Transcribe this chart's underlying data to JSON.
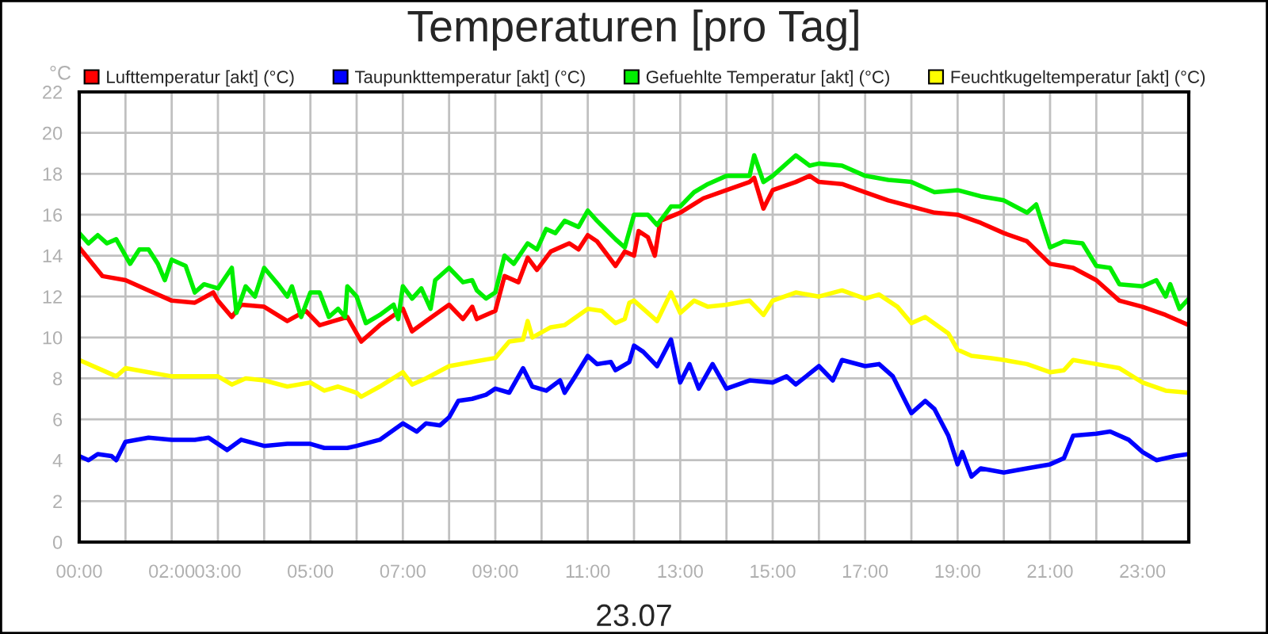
{
  "chart_data": {
    "type": "line",
    "title": "Temperaturen [pro Tag]",
    "xlabel": "23.07",
    "ylabel": "°C",
    "xlim": [
      0,
      24
    ],
    "ylim": [
      0,
      22
    ],
    "xticks": [
      {
        "value": 0,
        "label": "00:00"
      },
      {
        "value": 1,
        "label": null
      },
      {
        "value": 2,
        "label": "02:00"
      },
      {
        "value": 3,
        "label": "03:00"
      },
      {
        "value": 4,
        "label": null
      },
      {
        "value": 5,
        "label": "05:00"
      },
      {
        "value": 6,
        "label": null
      },
      {
        "value": 7,
        "label": "07:00"
      },
      {
        "value": 8,
        "label": null
      },
      {
        "value": 9,
        "label": "09:00"
      },
      {
        "value": 10,
        "label": null
      },
      {
        "value": 11,
        "label": "11:00"
      },
      {
        "value": 12,
        "label": null
      },
      {
        "value": 13,
        "label": "13:00"
      },
      {
        "value": 14,
        "label": null
      },
      {
        "value": 15,
        "label": "15:00"
      },
      {
        "value": 16,
        "label": null
      },
      {
        "value": 17,
        "label": "17:00"
      },
      {
        "value": 18,
        "label": null
      },
      {
        "value": 19,
        "label": "19:00"
      },
      {
        "value": 20,
        "label": null
      },
      {
        "value": 21,
        "label": "21:00"
      },
      {
        "value": 22,
        "label": null
      },
      {
        "value": 23,
        "label": "23:00"
      }
    ],
    "yticks": [
      0,
      2,
      4,
      6,
      8,
      10,
      12,
      14,
      16,
      18,
      20,
      22
    ],
    "grid": true,
    "legend": "top",
    "marker": "none",
    "line_style": "solid",
    "series": [
      {
        "name": "Lufttemperatur [akt] (°C)",
        "color": "#ff0000",
        "x": [
          0,
          0.5,
          1,
          1.5,
          2,
          2.5,
          2.9,
          3,
          3.3,
          3.5,
          4,
          4.5,
          4.9,
          5.2,
          5.5,
          5.8,
          6.1,
          6.5,
          7,
          7.2,
          7.5,
          8,
          8.3,
          8.5,
          8.6,
          9,
          9.2,
          9.5,
          9.7,
          9.9,
          10.2,
          10.6,
          10.8,
          11,
          11.2,
          11.6,
          11.8,
          12,
          12.1,
          12.3,
          12.45,
          12.57,
          13,
          13.5,
          14,
          14.5,
          14.6,
          14.8,
          15,
          15.5,
          15.8,
          16,
          16.5,
          17,
          17.5,
          18,
          18.5,
          19,
          19.5,
          20,
          20.5,
          21,
          21.5,
          22,
          22.5,
          23,
          23.5,
          24
        ],
        "values": [
          14.4,
          13.0,
          12.8,
          12.3,
          11.8,
          11.7,
          12.2,
          11.8,
          11.0,
          11.6,
          11.5,
          10.8,
          11.3,
          10.6,
          10.8,
          11.0,
          9.8,
          10.6,
          11.4,
          10.3,
          10.8,
          11.6,
          10.9,
          11.5,
          10.9,
          11.3,
          13.0,
          12.7,
          13.9,
          13.3,
          14.2,
          14.6,
          14.3,
          15.0,
          14.7,
          13.5,
          14.2,
          14.0,
          15.2,
          14.9,
          14.0,
          15.7,
          16.1,
          16.8,
          17.2,
          17.6,
          17.8,
          16.3,
          17.2,
          17.6,
          17.9,
          17.6,
          17.5,
          17.1,
          16.7,
          16.4,
          16.1,
          16.0,
          15.6,
          15.1,
          14.7,
          13.6,
          13.4,
          12.8,
          11.8,
          11.5,
          11.1,
          10.6
        ]
      },
      {
        "name": "Taupunkttemperatur [akt] (°C)",
        "color": "#0000ff",
        "x": [
          0,
          0.2,
          0.4,
          0.7,
          0.8,
          1,
          1.5,
          2,
          2.5,
          2.8,
          3,
          3.2,
          3.5,
          4,
          4.5,
          5,
          5.3,
          5.8,
          6,
          6.5,
          7,
          7.3,
          7.5,
          7.8,
          8,
          8.2,
          8.5,
          8.8,
          9,
          9.3,
          9.6,
          9.8,
          10.1,
          10.4,
          10.5,
          10.7,
          11,
          11.2,
          11.5,
          11.6,
          11.9,
          12,
          12.2,
          12.5,
          12.8,
          13,
          13.2,
          13.4,
          13.7,
          14,
          14.5,
          15,
          15.3,
          15.5,
          16,
          16.3,
          16.5,
          17,
          17.3,
          17.6,
          18,
          18.3,
          18.5,
          18.8,
          19,
          19.1,
          19.3,
          19.5,
          20,
          20.5,
          21,
          21.3,
          21.5,
          22,
          22.3,
          22.7,
          23,
          23.3,
          23.7,
          24
        ],
        "values": [
          4.2,
          4.0,
          4.3,
          4.2,
          4.0,
          4.9,
          5.1,
          5.0,
          5.0,
          5.1,
          4.8,
          4.5,
          5.0,
          4.7,
          4.8,
          4.8,
          4.6,
          4.6,
          4.7,
          5.0,
          5.8,
          5.4,
          5.8,
          5.7,
          6.1,
          6.9,
          7.0,
          7.2,
          7.5,
          7.3,
          8.5,
          7.6,
          7.4,
          7.9,
          7.3,
          8.0,
          9.1,
          8.7,
          8.8,
          8.4,
          8.8,
          9.6,
          9.3,
          8.6,
          9.9,
          7.8,
          8.7,
          7.5,
          8.7,
          7.5,
          7.9,
          7.8,
          8.1,
          7.7,
          8.6,
          7.9,
          8.9,
          8.6,
          8.7,
          8.1,
          6.3,
          6.9,
          6.5,
          5.2,
          3.8,
          4.4,
          3.2,
          3.6,
          3.4,
          3.6,
          3.8,
          4.1,
          5.2,
          5.3,
          5.4,
          5.0,
          4.4,
          4.0,
          4.2,
          4.3
        ]
      },
      {
        "name": "Gefuehlte Temperatur [akt] (°C)",
        "color": "#00ee00",
        "x": [
          0,
          0.2,
          0.4,
          0.6,
          0.8,
          1,
          1.1,
          1.3,
          1.5,
          1.7,
          1.85,
          2,
          2.3,
          2.5,
          2.7,
          3,
          3.3,
          3.4,
          3.6,
          3.8,
          4,
          4.3,
          4.5,
          4.6,
          4.8,
          5,
          5.2,
          5.4,
          5.6,
          5.75,
          5.8,
          6,
          6.2,
          6.5,
          6.8,
          6.9,
          7,
          7.2,
          7.4,
          7.6,
          7.7,
          8,
          8.3,
          8.5,
          8.6,
          8.8,
          9,
          9.2,
          9.4,
          9.7,
          9.9,
          10.1,
          10.3,
          10.5,
          10.8,
          11,
          11.2,
          11.6,
          11.8,
          12,
          12.3,
          12.5,
          12.8,
          13,
          13.3,
          13.6,
          14,
          14.5,
          14.6,
          14.8,
          15,
          15.5,
          15.8,
          16,
          16.5,
          17,
          17.5,
          18,
          18.5,
          19,
          19.5,
          20,
          20.5,
          20.7,
          21,
          21.3,
          21.7,
          22,
          22.3,
          22.5,
          23,
          23.3,
          23.5,
          23.6,
          23.8,
          24
        ],
        "values": [
          15.1,
          14.6,
          15.0,
          14.6,
          14.8,
          14.0,
          13.6,
          14.3,
          14.3,
          13.6,
          12.8,
          13.8,
          13.5,
          12.2,
          12.6,
          12.4,
          13.4,
          11.2,
          12.5,
          12.0,
          13.4,
          12.6,
          12.0,
          12.5,
          11.0,
          12.2,
          12.2,
          11.0,
          11.4,
          11.0,
          12.5,
          12.0,
          10.7,
          11.1,
          11.6,
          10.9,
          12.5,
          11.9,
          12.4,
          11.4,
          12.8,
          13.4,
          12.7,
          12.8,
          12.3,
          11.9,
          12.2,
          14.0,
          13.6,
          14.6,
          14.3,
          15.3,
          15.1,
          15.7,
          15.4,
          16.2,
          15.7,
          14.8,
          14.4,
          16.0,
          16.0,
          15.5,
          16.4,
          16.4,
          17.1,
          17.5,
          17.9,
          17.9,
          18.9,
          17.6,
          17.9,
          18.9,
          18.4,
          18.5,
          18.4,
          17.9,
          17.7,
          17.6,
          17.1,
          17.2,
          16.9,
          16.7,
          16.1,
          16.5,
          14.4,
          14.7,
          14.6,
          13.5,
          13.4,
          12.6,
          12.5,
          12.8,
          12.0,
          12.6,
          11.4,
          11.9
        ]
      },
      {
        "name": "Feuchtkugeltemperatur [akt] (°C)",
        "color": "#ffff00",
        "x": [
          0,
          0.5,
          0.8,
          1,
          1.5,
          2,
          2.5,
          3,
          3.3,
          3.6,
          4,
          4.5,
          5,
          5.3,
          5.6,
          6,
          6.1,
          6.5,
          7,
          7.2,
          7.5,
          8,
          8.5,
          9,
          9.3,
          9.6,
          9.7,
          9.8,
          10.2,
          10.5,
          11,
          11.3,
          11.6,
          11.8,
          11.9,
          12,
          12.5,
          12.8,
          13,
          13.3,
          13.6,
          14,
          14.5,
          14.8,
          15,
          15.5,
          16,
          16.5,
          17,
          17.3,
          17.7,
          18,
          18.3,
          18.8,
          19,
          19.3,
          19.7,
          20,
          20.5,
          21,
          21.3,
          21.5,
          22,
          22.5,
          23,
          23.5,
          24
        ],
        "values": [
          8.9,
          8.4,
          8.1,
          8.5,
          8.3,
          8.1,
          8.1,
          8.1,
          7.7,
          8.0,
          7.9,
          7.6,
          7.8,
          7.4,
          7.6,
          7.3,
          7.1,
          7.6,
          8.3,
          7.7,
          8.0,
          8.6,
          8.8,
          9.0,
          9.8,
          9.9,
          10.8,
          10.0,
          10.5,
          10.6,
          11.4,
          11.3,
          10.7,
          10.9,
          11.7,
          11.8,
          10.8,
          12.2,
          11.2,
          11.8,
          11.5,
          11.6,
          11.8,
          11.1,
          11.8,
          12.2,
          12.0,
          12.3,
          11.9,
          12.1,
          11.5,
          10.7,
          11.0,
          10.2,
          9.4,
          9.1,
          9.0,
          8.9,
          8.7,
          8.3,
          8.4,
          8.9,
          8.7,
          8.5,
          7.8,
          7.4,
          7.3
        ]
      }
    ]
  }
}
